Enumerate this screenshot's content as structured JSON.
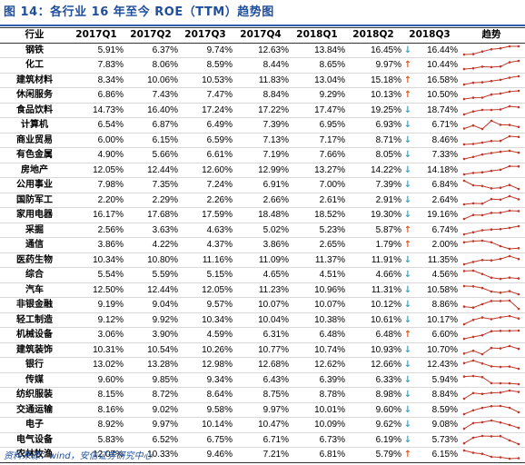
{
  "title": "图 14：各行业 16 年至今 ROE（TTM）趋势图",
  "source": "资料来源：wind，安信证券研究中心",
  "colors": {
    "up": "#e2571e",
    "down": "#3aa0b8",
    "spark": "#c0392b",
    "title": "#1f4e9c"
  },
  "icons": {
    "up": "up-arrow-icon",
    "down": "down-arrow-icon"
  },
  "headers": [
    "行业",
    "2017Q1",
    "2017Q2",
    "2017Q3",
    "2017Q4",
    "2018Q1",
    "2018Q2",
    "2018Q3",
    "趋势"
  ],
  "chart_data": {
    "type": "table",
    "columns": [
      "行业",
      "2017Q1",
      "2017Q2",
      "2017Q3",
      "2017Q4",
      "2018Q1",
      "2018Q2",
      "2018Q3",
      "趋势"
    ],
    "rows": [
      {
        "name": "钢铁",
        "values": [
          "5.91%",
          "6.37%",
          "9.74%",
          "12.63%",
          "13.84%",
          "16.45%",
          "16.44%"
        ],
        "dir": "down",
        "trend": [
          5.91,
          6.37,
          9.74,
          12.63,
          13.84,
          16.45,
          16.44
        ]
      },
      {
        "name": "化工",
        "values": [
          "7.83%",
          "8.06%",
          "8.59%",
          "8.44%",
          "8.65%",
          "9.97%",
          "10.44%"
        ],
        "dir": "up",
        "trend": [
          7.83,
          8.06,
          8.59,
          8.44,
          8.65,
          9.97,
          10.44
        ]
      },
      {
        "name": "建筑材料",
        "values": [
          "8.34%",
          "10.06%",
          "10.53%",
          "11.83%",
          "13.04%",
          "15.18%",
          "16.58%"
        ],
        "dir": "up",
        "trend": [
          8.34,
          10.06,
          10.53,
          11.83,
          13.04,
          15.18,
          16.58
        ]
      },
      {
        "name": "休闲服务",
        "values": [
          "6.86%",
          "7.43%",
          "7.47%",
          "8.84%",
          "9.29%",
          "10.13%",
          "10.50%"
        ],
        "dir": "up",
        "trend": [
          6.86,
          7.43,
          7.47,
          8.84,
          9.29,
          10.13,
          10.5
        ]
      },
      {
        "name": "食品饮料",
        "values": [
          "14.73%",
          "16.40%",
          "17.24%",
          "17.22%",
          "17.47%",
          "19.25%",
          "18.74%"
        ],
        "dir": "down",
        "trend": [
          14.73,
          16.4,
          17.24,
          17.22,
          17.47,
          19.25,
          18.74
        ]
      },
      {
        "name": "计算机",
        "values": [
          "6.54%",
          "6.87%",
          "6.49%",
          "7.39%",
          "6.95%",
          "6.93%",
          "6.71%"
        ],
        "dir": "down",
        "trend": [
          6.54,
          6.87,
          6.49,
          7.39,
          6.95,
          6.93,
          6.71
        ]
      },
      {
        "name": "商业贸易",
        "values": [
          "6.00%",
          "6.15%",
          "6.59%",
          "7.13%",
          "7.17%",
          "8.71%",
          "8.46%"
        ],
        "dir": "down",
        "trend": [
          6.0,
          6.15,
          6.59,
          7.13,
          7.17,
          8.71,
          8.46
        ]
      },
      {
        "name": "有色金属",
        "values": [
          "4.90%",
          "5.66%",
          "6.61%",
          "7.19%",
          "7.66%",
          "8.05%",
          "7.33%"
        ],
        "dir": "down",
        "trend": [
          4.9,
          5.66,
          6.61,
          7.19,
          7.66,
          8.05,
          7.33
        ]
      },
      {
        "name": "房地产",
        "values": [
          "12.05%",
          "12.44%",
          "12.60%",
          "12.99%",
          "13.27%",
          "14.22%",
          "14.18%"
        ],
        "dir": "down",
        "trend": [
          12.05,
          12.44,
          12.6,
          12.99,
          13.27,
          14.22,
          14.18
        ]
      },
      {
        "name": "公用事业",
        "values": [
          "7.98%",
          "7.35%",
          "7.24%",
          "6.91%",
          "7.00%",
          "7.39%",
          "6.84%"
        ],
        "dir": "down",
        "trend": [
          7.98,
          7.35,
          7.24,
          6.91,
          7.0,
          7.39,
          6.84
        ]
      },
      {
        "name": "国防军工",
        "values": [
          "2.20%",
          "2.29%",
          "2.26%",
          "2.66%",
          "2.61%",
          "2.91%",
          "2.64%"
        ],
        "dir": "down",
        "trend": [
          2.2,
          2.29,
          2.26,
          2.66,
          2.61,
          2.91,
          2.64
        ]
      },
      {
        "name": "家用电器",
        "values": [
          "16.17%",
          "17.68%",
          "17.59%",
          "18.48%",
          "18.52%",
          "19.30%",
          "19.16%"
        ],
        "dir": "down",
        "trend": [
          16.17,
          17.68,
          17.59,
          18.48,
          18.52,
          19.3,
          19.16
        ]
      },
      {
        "name": "采掘",
        "values": [
          "2.56%",
          "3.63%",
          "4.63%",
          "5.02%",
          "5.23%",
          "5.87%",
          "6.74%"
        ],
        "dir": "up",
        "trend": [
          2.56,
          3.63,
          4.63,
          5.02,
          5.23,
          5.87,
          6.74
        ]
      },
      {
        "name": "通信",
        "values": [
          "3.86%",
          "4.22%",
          "4.37%",
          "3.86%",
          "2.65%",
          "1.79%",
          "2.00%"
        ],
        "dir": "up",
        "trend": [
          3.86,
          4.22,
          4.37,
          3.86,
          2.65,
          1.79,
          2.0
        ]
      },
      {
        "name": "医药生物",
        "values": [
          "10.34%",
          "10.80%",
          "11.16%",
          "11.09%",
          "11.37%",
          "11.91%",
          "11.35%"
        ],
        "dir": "down",
        "trend": [
          10.34,
          10.8,
          11.16,
          11.09,
          11.37,
          11.91,
          11.35
        ]
      },
      {
        "name": "综合",
        "values": [
          "5.54%",
          "5.59%",
          "5.15%",
          "4.65%",
          "4.51%",
          "4.66%",
          "4.56%"
        ],
        "dir": "down",
        "trend": [
          5.54,
          5.59,
          5.15,
          4.65,
          4.51,
          4.66,
          4.56
        ]
      },
      {
        "name": "汽车",
        "values": [
          "12.50%",
          "12.44%",
          "12.05%",
          "11.23%",
          "10.96%",
          "11.31%",
          "10.58%"
        ],
        "dir": "down",
        "trend": [
          12.5,
          12.44,
          12.05,
          11.23,
          10.96,
          11.31,
          10.58
        ]
      },
      {
        "name": "非银金融",
        "values": [
          "9.19%",
          "9.04%",
          "9.57%",
          "10.07%",
          "10.07%",
          "10.12%",
          "8.86%"
        ],
        "dir": "down",
        "trend": [
          9.19,
          9.04,
          9.57,
          10.07,
          10.07,
          10.12,
          8.86
        ]
      },
      {
        "name": "轻工制造",
        "values": [
          "9.12%",
          "9.92%",
          "10.34%",
          "10.04%",
          "10.38%",
          "10.61%",
          "10.17%"
        ],
        "dir": "down",
        "trend": [
          9.12,
          9.92,
          10.34,
          10.04,
          10.38,
          10.61,
          10.17
        ]
      },
      {
        "name": "机械设备",
        "values": [
          "3.06%",
          "3.90%",
          "4.59%",
          "6.31%",
          "6.48%",
          "6.48%",
          "6.60%"
        ],
        "dir": "up",
        "trend": [
          3.06,
          3.9,
          4.59,
          6.31,
          6.48,
          6.48,
          6.6
        ]
      },
      {
        "name": "建筑装饰",
        "values": [
          "10.31%",
          "10.54%",
          "10.26%",
          "10.77%",
          "10.74%",
          "10.93%",
          "10.70%"
        ],
        "dir": "down",
        "trend": [
          10.31,
          10.54,
          10.26,
          10.77,
          10.74,
          10.93,
          10.7
        ]
      },
      {
        "name": "银行",
        "values": [
          "13.02%",
          "13.28%",
          "12.98%",
          "12.68%",
          "12.62%",
          "12.66%",
          "12.43%"
        ],
        "dir": "down",
        "trend": [
          13.02,
          13.28,
          12.98,
          12.68,
          12.62,
          12.66,
          12.43
        ]
      },
      {
        "name": "传媒",
        "values": [
          "9.60%",
          "9.85%",
          "9.34%",
          "6.43%",
          "6.39%",
          "6.33%",
          "5.94%"
        ],
        "dir": "down",
        "trend": [
          9.6,
          9.85,
          9.34,
          6.43,
          6.39,
          6.33,
          5.94
        ]
      },
      {
        "name": "纺织服装",
        "values": [
          "8.15%",
          "8.72%",
          "8.64%",
          "8.75%",
          "8.78%",
          "8.98%",
          "8.84%"
        ],
        "dir": "down",
        "trend": [
          8.15,
          8.72,
          8.64,
          8.75,
          8.78,
          8.98,
          8.84
        ]
      },
      {
        "name": "交通运输",
        "values": [
          "8.16%",
          "9.02%",
          "9.58%",
          "9.97%",
          "10.01%",
          "9.60%",
          "8.59%"
        ],
        "dir": "down",
        "trend": [
          8.16,
          9.02,
          9.58,
          9.97,
          10.01,
          9.6,
          8.59
        ]
      },
      {
        "name": "电子",
        "values": [
          "8.92%",
          "9.97%",
          "10.14%",
          "10.47%",
          "10.09%",
          "9.62%",
          "9.08%"
        ],
        "dir": "down",
        "trend": [
          8.92,
          9.97,
          10.14,
          10.47,
          10.09,
          9.62,
          9.08
        ]
      },
      {
        "name": "电气设备",
        "values": [
          "5.83%",
          "6.52%",
          "6.75%",
          "6.71%",
          "6.73%",
          "6.19%",
          "5.73%"
        ],
        "dir": "down",
        "trend": [
          5.83,
          6.52,
          6.75,
          6.71,
          6.73,
          6.19,
          5.73
        ]
      },
      {
        "name": "农林牧渔",
        "values": [
          "12.07%",
          "10.33%",
          "9.46%",
          "7.21%",
          "6.81%",
          "5.79%",
          "6.15%"
        ],
        "dir": "up",
        "trend": [
          12.07,
          10.33,
          9.46,
          7.21,
          6.81,
          5.79,
          6.15
        ]
      }
    ]
  }
}
